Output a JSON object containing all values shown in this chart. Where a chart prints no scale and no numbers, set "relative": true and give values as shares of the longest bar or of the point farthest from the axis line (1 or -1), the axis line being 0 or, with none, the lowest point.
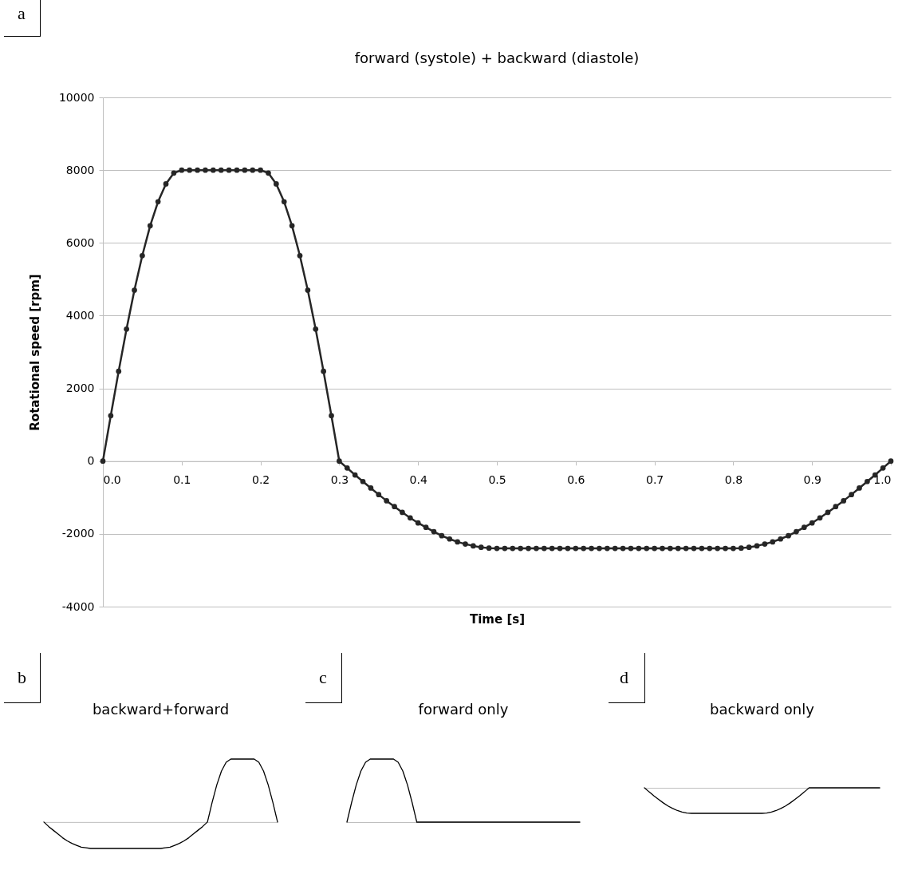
{
  "chart_data": [
    {
      "type": "line",
      "title": "forward (systole) + backward (diastole)",
      "xlabel": "Time [s]",
      "ylabel": "Rotational speed [rpm]",
      "annotations": [
        "a"
      ],
      "grid": "y",
      "marker": "circle",
      "x": [
        0,
        0.01,
        0.02,
        0.03,
        0.04,
        0.05,
        0.06,
        0.07,
        0.08,
        0.09,
        0.1,
        0.11,
        0.12,
        0.13,
        0.14,
        0.15,
        0.16,
        0.17,
        0.18,
        0.19,
        0.2,
        0.21,
        0.22,
        0.23,
        0.24,
        0.25,
        0.26,
        0.27,
        0.28,
        0.29,
        0.3,
        0.31,
        0.32,
        0.33,
        0.34,
        0.35,
        0.36,
        0.37,
        0.38,
        0.39,
        0.4,
        0.41,
        0.42,
        0.43,
        0.44,
        0.45,
        0.46,
        0.47,
        0.48,
        0.49,
        0.5,
        0.51,
        0.52,
        0.53,
        0.54,
        0.55,
        0.56,
        0.57,
        0.58,
        0.59,
        0.6,
        0.61,
        0.62,
        0.63,
        0.64,
        0.65,
        0.66,
        0.67,
        0.68,
        0.69,
        0.7,
        0.71,
        0.72,
        0.73,
        0.74,
        0.75,
        0.76,
        0.77,
        0.78,
        0.79,
        0.8,
        0.81,
        0.82,
        0.83,
        0.84,
        0.85,
        0.86,
        0.87,
        0.88,
        0.89,
        0.9,
        0.91,
        0.92,
        0.93,
        0.94,
        0.95,
        0.96,
        0.97,
        0.98,
        0.99,
        1
      ],
      "series": [
        {
          "color": "#262626",
          "values": [
            0,
            1250,
            2470,
            3630,
            4700,
            5650,
            6470,
            7130,
            7620,
            7920,
            8000,
            8000,
            8000,
            8000,
            8000,
            8000,
            8000,
            8000,
            8000,
            8000,
            8000,
            7920,
            7620,
            7130,
            6470,
            5650,
            4700,
            3630,
            2470,
            1250,
            0,
            -190,
            -380,
            -560,
            -740,
            -920,
            -1090,
            -1250,
            -1410,
            -1560,
            -1700,
            -1820,
            -1940,
            -2050,
            -2140,
            -2220,
            -2280,
            -2330,
            -2370,
            -2390,
            -2400,
            -2400,
            -2400,
            -2400,
            -2400,
            -2400,
            -2400,
            -2400,
            -2400,
            -2400,
            -2400,
            -2400,
            -2400,
            -2400,
            -2400,
            -2400,
            -2400,
            -2400,
            -2400,
            -2400,
            -2400,
            -2400,
            -2400,
            -2400,
            -2400,
            -2400,
            -2400,
            -2400,
            -2400,
            -2400,
            -2400,
            -2390,
            -2370,
            -2330,
            -2280,
            -2220,
            -2140,
            -2050,
            -1940,
            -1820,
            -1700,
            -1560,
            -1410,
            -1250,
            -1090,
            -920,
            -740,
            -560,
            -380,
            -190,
            0
          ]
        }
      ],
      "xlim": [
        0,
        1
      ],
      "ylim": [
        -4000,
        10000
      ],
      "xticks": [
        {
          "value": 0,
          "label": "0.0"
        },
        0.1,
        0.2,
        0.3,
        0.4,
        0.5,
        0.6,
        0.7,
        0.8,
        0.9,
        {
          "value": 1,
          "label": "1.0"
        }
      ],
      "yticks": [
        -4000,
        -2000,
        0,
        2000,
        4000,
        6000,
        8000,
        10000
      ]
    },
    {
      "type": "line",
      "title": "backward+forward",
      "annotations": [
        "b"
      ],
      "relative": true,
      "tick_labels": false,
      "categories": [
        null,
        null,
        null,
        null,
        null,
        null,
        null,
        null,
        null,
        null,
        null,
        null,
        null,
        null,
        null,
        null,
        null,
        null,
        null,
        null,
        null,
        null,
        null,
        null,
        null,
        null,
        null,
        null,
        null,
        null,
        null,
        null,
        null,
        null,
        null,
        null,
        null,
        null,
        null,
        null,
        null,
        null,
        null,
        null,
        null,
        null,
        null,
        null,
        null,
        null,
        null
      ],
      "series": [
        {
          "color": "#000000",
          "values": [
            0,
            -0.07,
            -0.13,
            -0.19,
            -0.25,
            -0.3,
            -0.34,
            -0.37,
            -0.4,
            -0.41,
            -0.42,
            -0.42,
            -0.42,
            -0.42,
            -0.42,
            -0.42,
            -0.42,
            -0.42,
            -0.42,
            -0.42,
            -0.42,
            -0.42,
            -0.42,
            -0.42,
            -0.42,
            -0.42,
            -0.41,
            -0.4,
            -0.37,
            -0.34,
            -0.3,
            -0.25,
            -0.19,
            -0.13,
            -0.07,
            0,
            0.31,
            0.59,
            0.81,
            0.95,
            1,
            1,
            1,
            1,
            1,
            1,
            0.95,
            0.81,
            0.59,
            0.31,
            0
          ]
        }
      ]
    },
    {
      "type": "line",
      "title": "forward only",
      "annotations": [
        "c"
      ],
      "relative": true,
      "tick_labels": false,
      "categories": [
        null,
        null,
        null,
        null,
        null,
        null,
        null,
        null,
        null,
        null,
        null,
        null,
        null,
        null,
        null,
        null,
        null,
        null,
        null,
        null,
        null,
        null,
        null,
        null,
        null,
        null,
        null,
        null,
        null,
        null,
        null,
        null,
        null,
        null,
        null,
        null,
        null,
        null,
        null,
        null,
        null,
        null,
        null,
        null,
        null,
        null,
        null,
        null,
        null,
        null,
        null
      ],
      "series": [
        {
          "color": "#000000",
          "values": [
            0,
            0.31,
            0.59,
            0.81,
            0.95,
            1,
            1,
            1,
            1,
            1,
            1,
            0.95,
            0.81,
            0.59,
            0.31,
            0,
            0,
            0,
            0,
            0,
            0,
            0,
            0,
            0,
            0,
            0,
            0,
            0,
            0,
            0,
            0,
            0,
            0,
            0,
            0,
            0,
            0,
            0,
            0,
            0,
            0,
            0,
            0,
            0,
            0,
            0,
            0,
            0,
            0,
            0,
            0
          ]
        }
      ]
    },
    {
      "type": "line",
      "title": "backward only",
      "annotations": [
        "d"
      ],
      "relative": true,
      "tick_labels": false,
      "categories": [
        null,
        null,
        null,
        null,
        null,
        null,
        null,
        null,
        null,
        null,
        null,
        null,
        null,
        null,
        null,
        null,
        null,
        null,
        null,
        null,
        null,
        null,
        null,
        null,
        null,
        null,
        null,
        null,
        null,
        null,
        null,
        null,
        null,
        null,
        null,
        null,
        null,
        null,
        null,
        null,
        null,
        null,
        null,
        null,
        null,
        null,
        null,
        null,
        null,
        null,
        null
      ],
      "series": [
        {
          "color": "#000000",
          "values": [
            0,
            -0.16,
            -0.31,
            -0.45,
            -0.59,
            -0.71,
            -0.81,
            -0.89,
            -0.95,
            -0.99,
            -1,
            -1,
            -1,
            -1,
            -1,
            -1,
            -1,
            -1,
            -1,
            -1,
            -1,
            -1,
            -1,
            -1,
            -1,
            -1,
            -0.99,
            -0.95,
            -0.89,
            -0.81,
            -0.71,
            -0.59,
            -0.45,
            -0.31,
            -0.16,
            0,
            0,
            0,
            0,
            0,
            0,
            0,
            0,
            0,
            0,
            0,
            0,
            0,
            0,
            0,
            0
          ]
        }
      ]
    }
  ]
}
